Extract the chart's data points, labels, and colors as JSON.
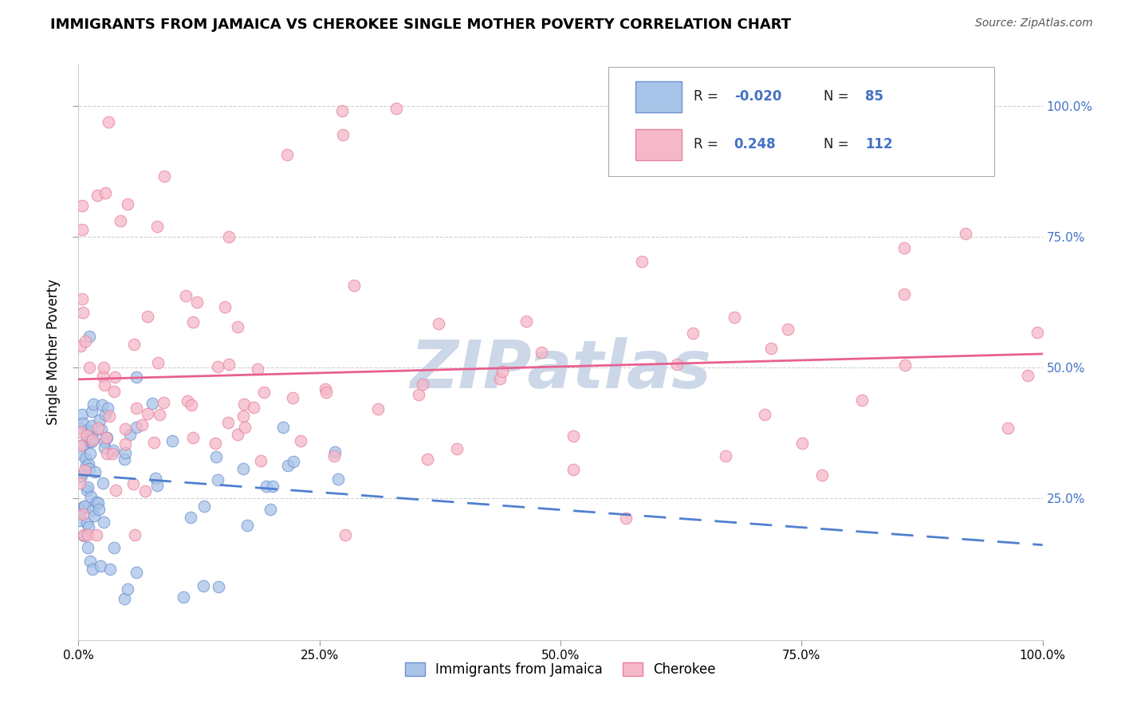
{
  "title": "IMMIGRANTS FROM JAMAICA VS CHEROKEE SINGLE MOTHER POVERTY CORRELATION CHART",
  "source": "Source: ZipAtlas.com",
  "ylabel": "Single Mother Poverty",
  "legend_label_blue": "Immigrants from Jamaica",
  "legend_label_pink": "Cherokee",
  "r_blue": "-0.020",
  "n_blue": "85",
  "r_pink": "0.248",
  "n_pink": "112",
  "xlim": [
    0,
    1
  ],
  "ylim": [
    -0.02,
    1.08
  ],
  "xtick_labels": [
    "0.0%",
    "25.0%",
    "50.0%",
    "75.0%",
    "100.0%"
  ],
  "xtick_positions": [
    0,
    0.25,
    0.5,
    0.75,
    1.0
  ],
  "ytick_positions_right": [
    1.0,
    0.75,
    0.5,
    0.25
  ],
  "ytick_labels_right": [
    "100.0%",
    "75.0%",
    "50.0%",
    "25.0%"
  ],
  "color_blue": "#a8c4e8",
  "color_pink": "#f5b8c8",
  "edge_blue": "#7090d0",
  "edge_pink": "#e880a0",
  "line_color_blue": "#5080d0",
  "line_color_pink": "#e86090",
  "watermark_color": "#ccd8e8",
  "background_color": "#ffffff",
  "grid_color": "#d0d0d0",
  "right_tick_color": "#4472c4",
  "title_fontsize": 13,
  "source_fontsize": 10,
  "tick_fontsize": 11,
  "ylabel_fontsize": 12
}
